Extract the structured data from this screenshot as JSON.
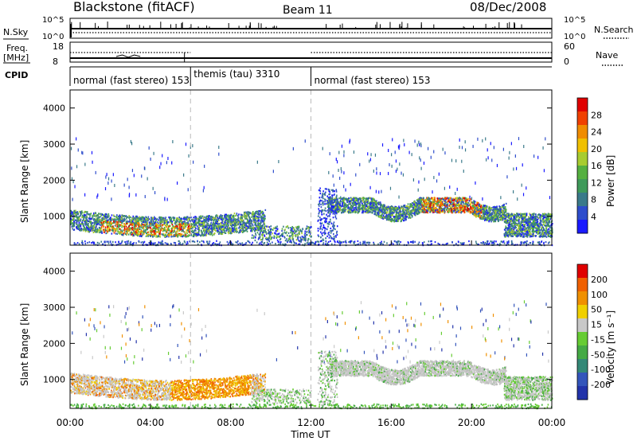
{
  "header": {
    "station": "Blackstone (fitACF)",
    "beam": "Beam 11",
    "date": "08/Dec/2008"
  },
  "panels": {
    "nsky_label": "N.Sky",
    "nsky_ticks": [
      "10^5",
      "10^0"
    ],
    "nsearch_label": "N.Search",
    "freq_label": "Freq.",
    "freq_unit": "[MHz]",
    "freq_ticks": [
      "18",
      "8"
    ],
    "nave_label": "Nave",
    "nave_ticks": [
      "60",
      "0"
    ],
    "cpid_label": "CPID"
  },
  "cpid_segments": [
    {
      "label": "normal (fast stereo) 153",
      "start_h": 0,
      "end_h": 6
    },
    {
      "label": "themis (tau) 3310",
      "start_h": 6,
      "end_h": 12
    },
    {
      "label": "normal (fast stereo) 153",
      "start_h": 12,
      "end_h": 24
    }
  ],
  "chart_data": [
    {
      "type": "heatmap",
      "name": "power",
      "ylabel": "Slant Range [km]",
      "xlabel": "",
      "ylim": [
        200,
        4500
      ],
      "xlim_hours": [
        0,
        24
      ],
      "yticks": [
        "1000",
        "2000",
        "3000",
        "4000"
      ],
      "colorbar": {
        "label": "Power [dB]",
        "ticks": [
          "4",
          "8",
          "12",
          "16",
          "20",
          "24",
          "28"
        ],
        "colors": [
          "#1a1aff",
          "#2e4dcc",
          "#3a7a8a",
          "#3f9a5a",
          "#55b040",
          "#a8cc30",
          "#f0c000",
          "#f08c00",
          "#f04000",
          "#e00000"
        ]
      }
    },
    {
      "type": "heatmap",
      "name": "velocity",
      "ylabel": "Slant Range [km]",
      "xlabel": "Time UT",
      "ylim": [
        200,
        4500
      ],
      "xlim_hours": [
        0,
        24
      ],
      "yticks": [
        "1000",
        "2000",
        "3000",
        "4000"
      ],
      "xticks": [
        "00:00",
        "04:00",
        "08:00",
        "12:00",
        "16:00",
        "20:00",
        "00:00"
      ],
      "colorbar": {
        "label": "Velocity [m s⁻¹]",
        "ticks": [
          "200",
          "100",
          "50",
          "15",
          "-15",
          "-50",
          "-100",
          "-200"
        ],
        "colors": [
          "#2233aa",
          "#3355bb",
          "#338877",
          "#44aa44",
          "#66cc33",
          "#c8c8c8",
          "#f0d000",
          "#f09000",
          "#f06000",
          "#e00000"
        ]
      }
    }
  ]
}
